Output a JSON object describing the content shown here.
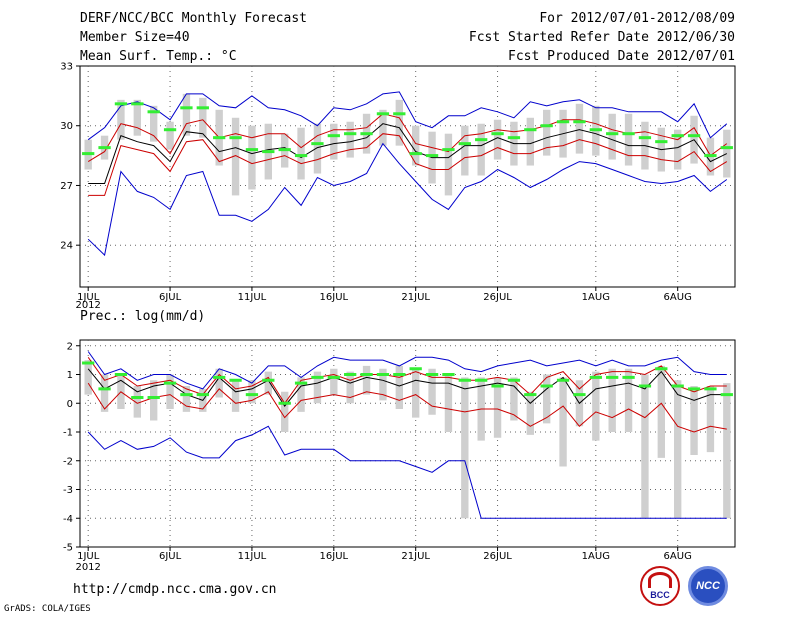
{
  "header": {
    "title": "DERF/NCC/BCC Monthly Forecast",
    "member_size": "Member Size=40",
    "period": "For 2012/07/01-2012/08/09",
    "fcst_started": "Fcst Started Refer Date 2012/06/30",
    "fcst_produced": "Fcst Produced Date 2012/07/01"
  },
  "footer": {
    "url": "http://cmdp.ncc.cma.gov.cn",
    "credit": "GrADS: COLA/IGES",
    "logo_left_text": "BCC",
    "logo_right_text": "NCC"
  },
  "colors": {
    "box": "#cfcfcf",
    "mean": "#000000",
    "spread": "#cc0000",
    "extreme": "#0000cc",
    "obs": "#33ee33"
  },
  "chart_data": [
    {
      "type": "line",
      "title": "Mean Surf. Temp.: °C",
      "xlabel": "",
      "ylabel": "",
      "ylim": [
        21.9,
        33
      ],
      "yticks": [
        24,
        27,
        30,
        33
      ],
      "xtick_labels": [
        "1JUL",
        "6JUL",
        "11JUL",
        "16JUL",
        "21JUL",
        "26JUL",
        "1AUG",
        "6AUG"
      ],
      "xtick_days": [
        1,
        6,
        11,
        16,
        21,
        26,
        32,
        37
      ],
      "year_label": "2012",
      "x": [
        1,
        2,
        3,
        4,
        5,
        6,
        7,
        8,
        9,
        10,
        11,
        12,
        13,
        14,
        15,
        16,
        17,
        18,
        19,
        20,
        21,
        22,
        23,
        24,
        25,
        26,
        27,
        28,
        29,
        30,
        31,
        32,
        33,
        34,
        35,
        36,
        37,
        38,
        39,
        40
      ],
      "series": [
        {
          "name": "max",
          "values": [
            24.3,
            23.5,
            27.7,
            26.7,
            26.4,
            25.8,
            27.5,
            27.7,
            25.5,
            25.5,
            25.2,
            25.8,
            26.9,
            26.0,
            27.4,
            27.0,
            27.2,
            27.6,
            29.1,
            28.1,
            27.2,
            26.3,
            25.8,
            26.9,
            27.2,
            27.8,
            27.4,
            26.9,
            27.3,
            27.8,
            28.2,
            28.1,
            27.8,
            27.5,
            27.2,
            27.1,
            27.2,
            27.5,
            26.7,
            27.3
          ]
        },
        {
          "name": "min",
          "values": [
            29.3,
            29.9,
            31.0,
            31.2,
            30.9,
            30.3,
            31.6,
            31.6,
            31.0,
            30.9,
            31.5,
            30.9,
            30.8,
            30.5,
            30.0,
            30.9,
            30.8,
            31.1,
            31.6,
            31.7,
            30.2,
            29.9,
            30.5,
            30.5,
            30.9,
            30.7,
            30.4,
            31.2,
            31.0,
            31.2,
            31.3,
            30.9,
            30.9,
            30.7,
            30.7,
            30.7,
            30.2,
            31.1,
            29.4,
            30.1
          ]
        },
        {
          "name": "upper",
          "values": [
            28.2,
            28.7,
            30.1,
            29.9,
            29.5,
            28.6,
            30.1,
            30.3,
            29.4,
            29.6,
            29.4,
            29.6,
            29.6,
            28.9,
            29.5,
            29.8,
            29.8,
            29.9,
            30.6,
            30.4,
            29.1,
            28.9,
            28.7,
            29.5,
            29.6,
            29.8,
            29.7,
            29.8,
            30.0,
            30.3,
            30.3,
            30.1,
            29.8,
            29.6,
            29.7,
            29.5,
            29.3,
            29.9,
            28.5,
            29.1
          ]
        },
        {
          "name": "mean",
          "values": [
            27.1,
            27.1,
            29.5,
            29.2,
            29.0,
            28.2,
            29.7,
            29.6,
            28.7,
            28.9,
            28.6,
            28.8,
            28.9,
            28.4,
            28.9,
            29.1,
            29.2,
            29.4,
            30.1,
            29.9,
            28.7,
            28.4,
            28.4,
            29.0,
            29.0,
            29.4,
            29.1,
            29.1,
            29.4,
            29.6,
            29.8,
            29.6,
            29.3,
            29.0,
            29.0,
            28.8,
            28.9,
            29.3,
            28.2,
            28.6
          ]
        },
        {
          "name": "lower",
          "values": [
            26.5,
            26.5,
            29.0,
            28.8,
            28.6,
            27.7,
            29.2,
            29.3,
            28.2,
            28.5,
            28.1,
            28.3,
            28.5,
            28.1,
            28.3,
            28.6,
            28.8,
            28.9,
            29.6,
            29.5,
            28.1,
            27.8,
            27.8,
            28.4,
            28.5,
            28.9,
            28.6,
            28.6,
            28.9,
            29.0,
            29.3,
            29.1,
            28.8,
            28.5,
            28.5,
            28.3,
            28.2,
            28.7,
            27.7,
            28.2
          ]
        }
      ],
      "boxes": [
        [
          27.8,
          29.3
        ],
        [
          28.3,
          29.5
        ],
        [
          29.3,
          31.3
        ],
        [
          29.5,
          31.3
        ],
        [
          29.2,
          31.0
        ],
        [
          28.8,
          30.2
        ],
        [
          29.5,
          31.6
        ],
        [
          29.4,
          31.4
        ],
        [
          28.0,
          30.8
        ],
        [
          26.5,
          30.4
        ],
        [
          26.8,
          30.0
        ],
        [
          27.3,
          30.1
        ],
        [
          27.9,
          29.6
        ],
        [
          27.3,
          29.9
        ],
        [
          27.6,
          30.1
        ],
        [
          28.3,
          30.1
        ],
        [
          28.4,
          30.2
        ],
        [
          28.6,
          30.6
        ],
        [
          29.0,
          30.8
        ],
        [
          29.0,
          31.3
        ],
        [
          28.0,
          30.0
        ],
        [
          27.1,
          29.7
        ],
        [
          26.5,
          29.6
        ],
        [
          27.5,
          30.0
        ],
        [
          27.5,
          30.1
        ],
        [
          28.3,
          30.3
        ],
        [
          28.0,
          30.2
        ],
        [
          28.0,
          30.4
        ],
        [
          28.5,
          30.8
        ],
        [
          28.4,
          30.8
        ],
        [
          28.6,
          31.1
        ],
        [
          28.5,
          31.0
        ],
        [
          28.3,
          30.6
        ],
        [
          28.0,
          30.6
        ],
        [
          27.8,
          30.2
        ],
        [
          27.7,
          29.9
        ],
        [
          27.8,
          29.8
        ],
        [
          28.1,
          30.5
        ],
        [
          27.5,
          29.4
        ],
        [
          27.4,
          29.8
        ]
      ],
      "observed": [
        28.6,
        28.9,
        31.1,
        31.1,
        30.7,
        29.8,
        30.9,
        30.9,
        29.4,
        29.4,
        28.8,
        28.7,
        28.8,
        28.5,
        29.1,
        29.5,
        29.6,
        29.6,
        30.6,
        30.6,
        28.6,
        28.5,
        28.8,
        29.1,
        29.3,
        29.6,
        29.4,
        29.8,
        30.0,
        30.2,
        30.2,
        29.8,
        29.6,
        29.6,
        29.4,
        29.2,
        29.5,
        29.5,
        28.5,
        28.9
      ]
    },
    {
      "type": "line",
      "title": "Prec.: log(mm/d)",
      "xlabel": "",
      "ylabel": "",
      "ylim": [
        -5,
        2.2
      ],
      "yticks": [
        -5,
        -4,
        -3,
        -2,
        -1,
        0,
        1,
        2
      ],
      "xtick_labels": [
        "1JUL",
        "6JUL",
        "11JUL",
        "16JUL",
        "21JUL",
        "26JUL",
        "1AUG",
        "6AUG"
      ],
      "xtick_days": [
        1,
        6,
        11,
        16,
        21,
        26,
        32,
        37
      ],
      "year_label": "2012",
      "x": [
        1,
        2,
        3,
        4,
        5,
        6,
        7,
        8,
        9,
        10,
        11,
        12,
        13,
        14,
        15,
        16,
        17,
        18,
        19,
        20,
        21,
        22,
        23,
        24,
        25,
        26,
        27,
        28,
        29,
        30,
        31,
        32,
        33,
        34,
        35,
        36,
        37,
        38,
        39,
        40
      ],
      "series": [
        {
          "name": "max",
          "values": [
            1.8,
            1.0,
            1.2,
            0.8,
            1.0,
            1.0,
            0.7,
            0.5,
            1.2,
            1.0,
            0.7,
            1.3,
            1.3,
            0.9,
            1.3,
            1.6,
            1.5,
            1.5,
            1.5,
            1.3,
            1.6,
            1.6,
            1.5,
            1.2,
            1.1,
            1.3,
            1.4,
            1.5,
            1.3,
            1.4,
            1.5,
            1.3,
            1.5,
            1.3,
            1.3,
            1.5,
            1.6,
            1.1,
            1.0,
            1.0
          ]
        },
        {
          "name": "min",
          "values": [
            -1.0,
            -1.6,
            -1.3,
            -1.6,
            -1.5,
            -1.2,
            -1.7,
            -1.9,
            -1.9,
            -1.3,
            -1.1,
            -0.8,
            -1.8,
            -1.6,
            -1.6,
            -1.6,
            -2.0,
            -2.0,
            -2.0,
            -2.0,
            -2.2,
            -2.4,
            -2.0,
            -2.0,
            -4.0,
            -4.0,
            -4.0,
            -4.0,
            -4.0,
            -4.0,
            -4.0,
            -4.0,
            -4.0,
            -4.0,
            -4.0,
            -4.0,
            -4.0,
            -4.0,
            -4.0,
            -4.0
          ]
        },
        {
          "name": "upper",
          "values": [
            1.6,
            0.8,
            1.0,
            0.6,
            0.7,
            0.8,
            0.5,
            0.3,
            1.0,
            0.5,
            0.6,
            0.9,
            0.0,
            0.8,
            0.9,
            1.0,
            0.8,
            1.0,
            1.0,
            0.9,
            1.1,
            0.9,
            0.9,
            0.8,
            0.8,
            0.9,
            0.8,
            0.3,
            0.9,
            1.1,
            0.5,
            1.0,
            1.1,
            1.1,
            1.0,
            1.3,
            0.6,
            0.4,
            0.6,
            0.6
          ]
        },
        {
          "name": "mean",
          "values": [
            1.2,
            0.5,
            0.8,
            0.4,
            0.6,
            0.7,
            0.3,
            0.1,
            0.9,
            0.4,
            0.5,
            0.8,
            -0.1,
            0.6,
            0.7,
            0.9,
            0.7,
            0.9,
            0.8,
            0.6,
            0.8,
            0.7,
            0.7,
            0.5,
            0.6,
            0.7,
            0.6,
            0.0,
            0.5,
            0.9,
            0.0,
            0.5,
            0.6,
            0.7,
            0.5,
            1.1,
            0.3,
            0.1,
            0.3,
            0.3
          ]
        },
        {
          "name": "lower",
          "values": [
            0.7,
            -0.2,
            0.4,
            0.0,
            0.2,
            0.3,
            -0.1,
            -0.2,
            0.5,
            0.0,
            0.1,
            0.4,
            -0.5,
            0.1,
            0.2,
            0.3,
            0.2,
            0.4,
            0.3,
            0.1,
            0.3,
            -0.1,
            -0.2,
            -0.3,
            -0.2,
            -0.2,
            -0.4,
            -0.8,
            -0.5,
            -0.1,
            -0.8,
            -0.3,
            -0.5,
            -0.2,
            -0.5,
            0.0,
            -0.8,
            -1.0,
            -0.8,
            -0.9
          ]
        }
      ],
      "boxes": [
        [
          0.3,
          1.5
        ],
        [
          -0.3,
          1.0
        ],
        [
          -0.2,
          1.0
        ],
        [
          -0.5,
          0.6
        ],
        [
          -0.6,
          0.8
        ],
        [
          -0.2,
          1.0
        ],
        [
          -0.3,
          0.6
        ],
        [
          -0.3,
          0.5
        ],
        [
          0.2,
          1.2
        ],
        [
          -0.3,
          0.8
        ],
        [
          0.0,
          0.8
        ],
        [
          0.3,
          1.1
        ],
        [
          -1.0,
          0.4
        ],
        [
          -0.3,
          0.9
        ],
        [
          0.0,
          1.1
        ],
        [
          0.3,
          1.2
        ],
        [
          0.0,
          1.1
        ],
        [
          0.3,
          1.3
        ],
        [
          0.1,
          1.2
        ],
        [
          -0.2,
          1.3
        ],
        [
          -0.5,
          1.2
        ],
        [
          -0.4,
          1.2
        ],
        [
          -1.0,
          1.0
        ],
        [
          -4.0,
          0.9
        ],
        [
          -1.3,
          0.9
        ],
        [
          -1.2,
          0.9
        ],
        [
          -0.6,
          0.9
        ],
        [
          -1.1,
          0.4
        ],
        [
          -0.7,
          1.0
        ],
        [
          -2.2,
          0.9
        ],
        [
          -0.8,
          0.8
        ],
        [
          -1.3,
          1.1
        ],
        [
          -1.0,
          1.2
        ],
        [
          -1.0,
          1.2
        ],
        [
          -4.0,
          1.0
        ],
        [
          -1.9,
          1.3
        ],
        [
          -4.0,
          0.8
        ],
        [
          -1.8,
          0.6
        ],
        [
          -1.7,
          0.6
        ],
        [
          -4.0,
          0.7
        ]
      ],
      "observed": [
        1.4,
        0.5,
        1.0,
        0.2,
        0.2,
        0.7,
        0.3,
        0.3,
        0.9,
        0.8,
        0.3,
        0.8,
        0.0,
        0.7,
        0.9,
        0.9,
        1.0,
        1.0,
        1.0,
        1.0,
        1.2,
        1.0,
        1.0,
        0.8,
        0.8,
        0.6,
        0.8,
        0.3,
        0.6,
        0.8,
        0.3,
        0.9,
        0.9,
        0.9,
        0.6,
        1.2,
        0.6,
        0.5,
        0.5,
        0.3
      ]
    }
  ]
}
